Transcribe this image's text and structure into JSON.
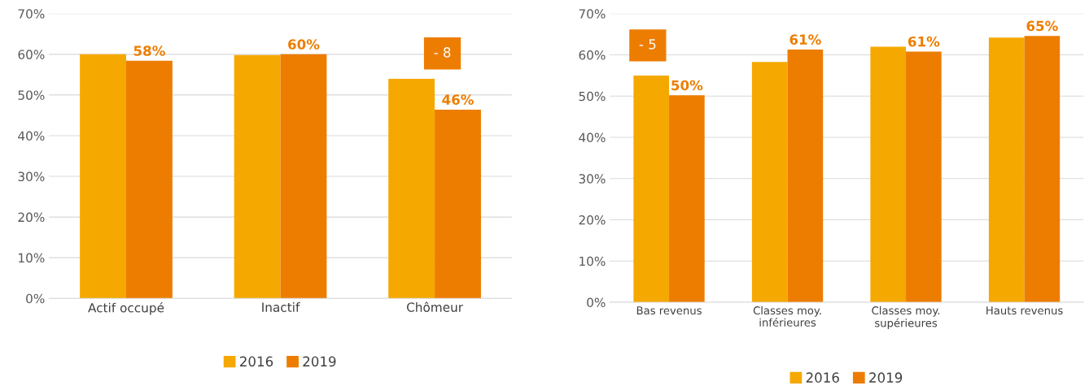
{
  "chart_data": [
    {
      "type": "bar",
      "categories": [
        "Actif occupé",
        "Inactif",
        "Chômeur"
      ],
      "series": [
        {
          "name": "2016",
          "color": "#f5a800",
          "values": [
            60,
            59.8,
            54
          ]
        },
        {
          "name": "2019",
          "color": "#ed7d00",
          "values": [
            58.4,
            60,
            46.4
          ],
          "value_labels": [
            "58%",
            "60%",
            "46%"
          ]
        }
      ],
      "ylim": [
        0,
        70
      ],
      "yticks": [
        {
          "value": 0,
          "label": "0%"
        },
        {
          "value": 10,
          "label": "10%"
        },
        {
          "value": 20,
          "label": "20%"
        },
        {
          "value": 30,
          "label": "30%"
        },
        {
          "value": 40,
          "label": "40%"
        },
        {
          "value": 50,
          "label": "50%"
        },
        {
          "value": 60,
          "label": "60%"
        },
        {
          "value": 70,
          "label": "70%"
        }
      ],
      "grid": "y",
      "legend": "bottom",
      "annotations": [
        "- 8"
      ]
    },
    {
      "type": "bar",
      "categories": [
        "Bas revenus",
        "Classes moy.\ninférieures",
        "Classes moy.\nsupérieures",
        "Hauts revenus"
      ],
      "series": [
        {
          "name": "2016",
          "color": "#f5a800",
          "values": [
            55,
            58.3,
            62,
            64.2
          ]
        },
        {
          "name": "2019",
          "color": "#ed7d00",
          "values": [
            50.2,
            61.3,
            60.8,
            64.6
          ],
          "value_labels": [
            "50%",
            "61%",
            "61%",
            "65%"
          ]
        }
      ],
      "ylim": [
        0,
        70
      ],
      "yticks": [
        {
          "value": 0,
          "label": "0%"
        },
        {
          "value": 10,
          "label": "10%"
        },
        {
          "value": 20,
          "label": "20%"
        },
        {
          "value": 30,
          "label": "30%"
        },
        {
          "value": 40,
          "label": "40%"
        },
        {
          "value": 50,
          "label": "50%"
        },
        {
          "value": 60,
          "label": "60%"
        },
        {
          "value": 70,
          "label": "70%"
        }
      ],
      "grid": "y",
      "legend": "bottom",
      "annotations": [
        "- 5"
      ]
    }
  ]
}
